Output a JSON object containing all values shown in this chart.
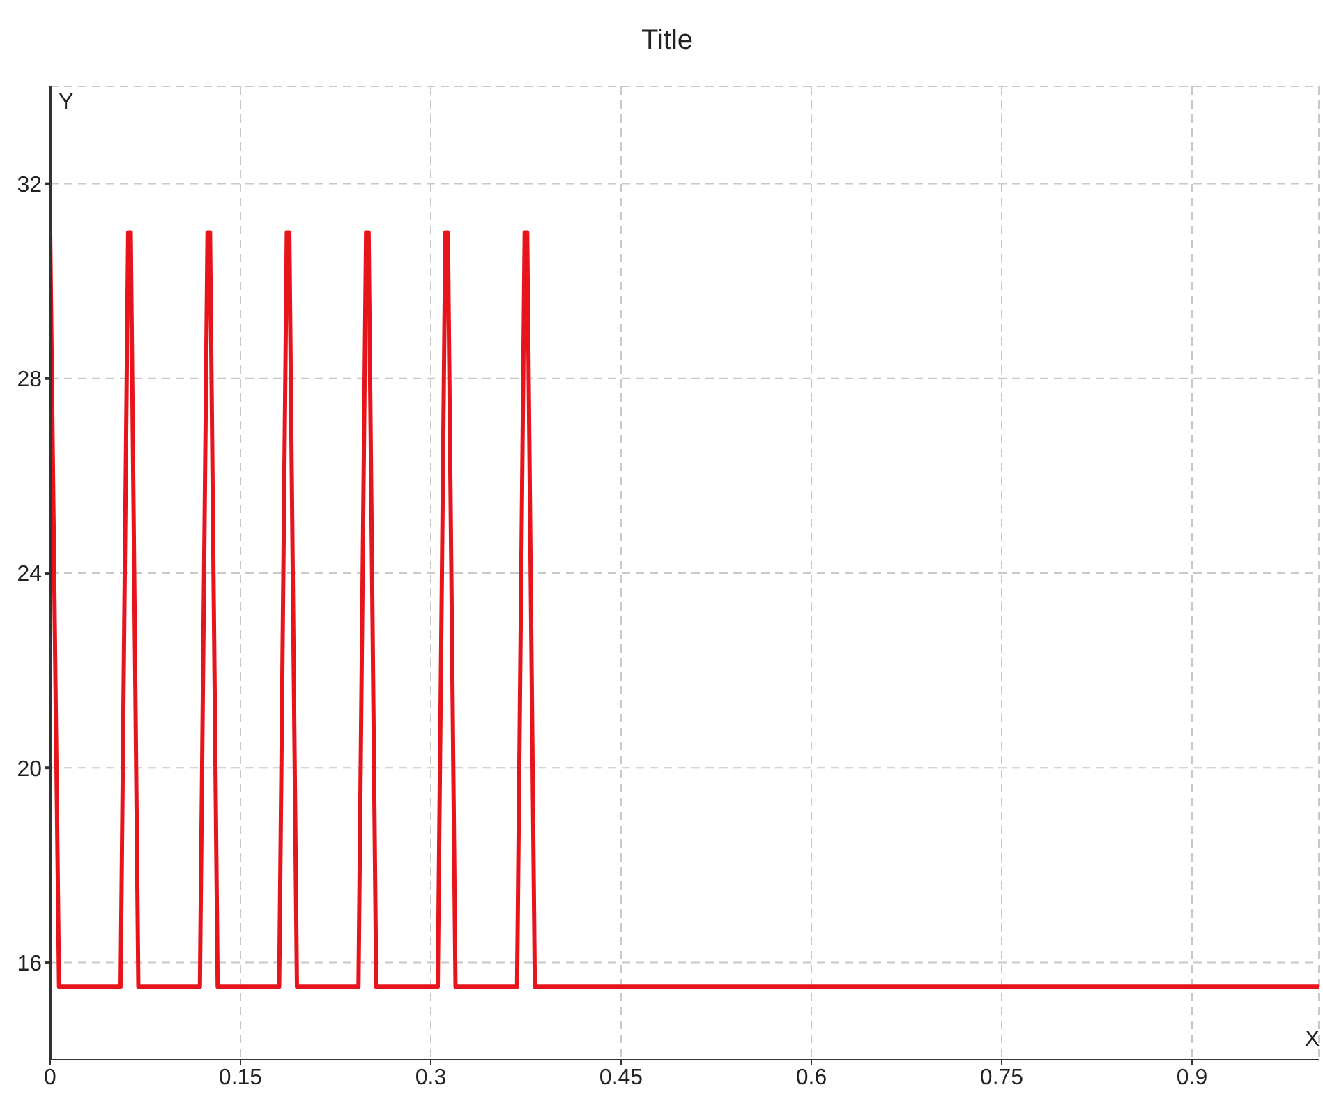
{
  "chart_data": {
    "type": "line",
    "title": "Title",
    "xlabel": "X",
    "ylabel": "Y",
    "x": [
      0,
      0.007,
      0.0555,
      0.0615,
      0.0635,
      0.0695,
      0.118,
      0.124,
      0.126,
      0.132,
      0.1805,
      0.1865,
      0.1885,
      0.1945,
      0.243,
      0.249,
      0.251,
      0.257,
      0.3055,
      0.3115,
      0.3135,
      0.3195,
      0.368,
      0.374,
      0.376,
      0.382,
      1
    ],
    "series": [
      {
        "color": "#e8141b",
        "values": [
          31,
          15.5,
          15.5,
          31,
          31,
          15.5,
          15.5,
          31,
          31,
          15.5,
          15.5,
          31,
          31,
          15.5,
          15.5,
          31,
          31,
          15.5,
          15.5,
          31,
          31,
          15.5,
          15.5,
          31,
          31,
          15.5,
          15.5
        ]
      }
    ],
    "xlim": [
      0,
      1
    ],
    "xticks": [
      0,
      0.15,
      0.3,
      0.45,
      0.6,
      0.75,
      0.9
    ],
    "ylim": [
      14,
      34
    ],
    "yticks": [
      16,
      20,
      24,
      28,
      32
    ],
    "grid": true,
    "legend": false,
    "marker": "none",
    "line_style": "solid"
  }
}
